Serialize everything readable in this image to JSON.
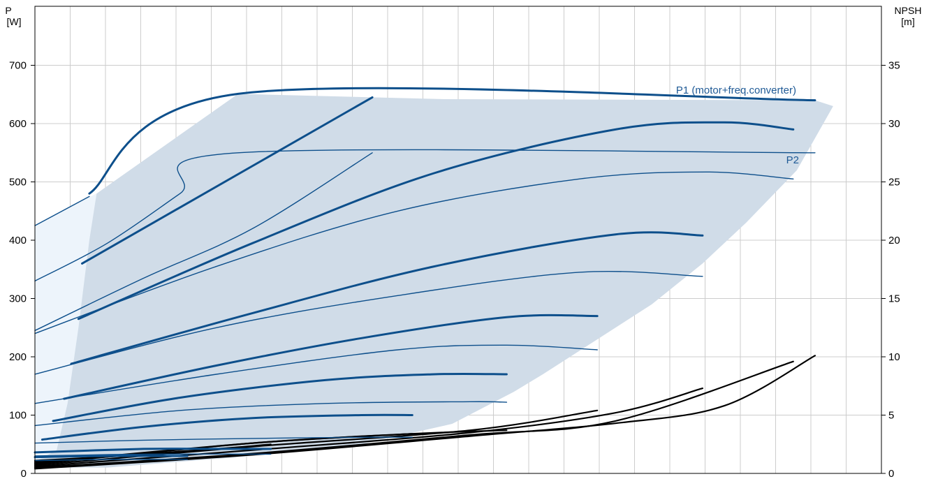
{
  "chart_data": {
    "type": "line",
    "title": "",
    "y_left": {
      "label_line1": "P",
      "label_line2": "[W]",
      "ylim": [
        0,
        700
      ],
      "ticks": [
        0,
        100,
        200,
        300,
        400,
        500,
        600,
        700
      ]
    },
    "y_right": {
      "label_line1": "NPSH",
      "label_line2": "[m]",
      "ylim": [
        0,
        35
      ],
      "ticks": [
        0,
        5,
        10,
        15,
        20,
        25,
        30,
        35
      ]
    },
    "x": {
      "xlim": [
        0,
        24
      ],
      "grid_count": 24,
      "tick_labels": []
    },
    "grid": true,
    "colors": {
      "curve": "#0d4f8b",
      "envelope": "#d0dce8",
      "light_region": "#edf4fb",
      "npsh": "#000000",
      "grid": "#cccccc",
      "label": "#1f5a96",
      "text": "#000000"
    },
    "annotations": [
      {
        "id": "p1",
        "text": "P1 (motor+freq.converter)"
      },
      {
        "id": "p2",
        "text": "P2"
      }
    ],
    "envelope_upper": [
      [
        0,
        425
      ],
      [
        1.7,
        480
      ],
      [
        5.6,
        651
      ],
      [
        11.2,
        642
      ],
      [
        21.5,
        640
      ],
      [
        22,
        630
      ]
    ],
    "envelope_lower": [
      [
        22,
        630
      ],
      [
        21,
        520
      ],
      [
        19.6,
        430
      ],
      [
        18.4,
        360
      ],
      [
        17,
        290
      ],
      [
        15.5,
        230
      ],
      [
        14,
        170
      ],
      [
        13.2,
        140
      ],
      [
        11.5,
        85
      ],
      [
        9,
        50
      ],
      [
        6,
        30
      ],
      [
        2,
        10
      ],
      [
        0,
        10
      ]
    ],
    "light_region": [
      [
        0,
        425
      ],
      [
        1.7,
        480
      ],
      [
        1.5,
        400
      ],
      [
        1.2,
        250
      ],
      [
        0.9,
        120
      ],
      [
        0.6,
        40
      ],
      [
        0,
        20
      ]
    ],
    "p1_series": [
      {
        "name": "P1",
        "values": [
          [
            1.5,
            480
          ],
          [
            5.6,
            651
          ],
          [
            21.5,
            640
          ]
        ]
      },
      {
        "name": "P1",
        "values": [
          [
            1.3,
            360
          ],
          [
            9.3,
            645
          ]
        ]
      },
      {
        "name": "P1",
        "values": [
          [
            1.2,
            265
          ],
          [
            6,
            395
          ],
          [
            11,
            515
          ],
          [
            16,
            590
          ],
          [
            19,
            602
          ],
          [
            20.9,
            590
          ]
        ]
      },
      {
        "name": "P1",
        "values": [
          [
            1,
            188
          ],
          [
            6,
            275
          ],
          [
            11,
            355
          ],
          [
            16,
            410
          ],
          [
            18.4,
            408
          ]
        ]
      },
      {
        "name": "P1",
        "values": [
          [
            0.8,
            128
          ],
          [
            5,
            185
          ],
          [
            9,
            232
          ],
          [
            13,
            268
          ],
          [
            15.5,
            270
          ]
        ]
      },
      {
        "name": "P1",
        "values": [
          [
            0.5,
            90
          ],
          [
            4,
            130
          ],
          [
            8,
            160
          ],
          [
            11,
            170
          ],
          [
            13,
            170
          ]
        ]
      },
      {
        "name": "P1",
        "values": [
          [
            0.2,
            58
          ],
          [
            3,
            80
          ],
          [
            6,
            95
          ],
          [
            9,
            100
          ],
          [
            10.4,
            100
          ]
        ]
      },
      {
        "name": "P1",
        "values": [
          [
            0,
            36
          ],
          [
            3,
            42
          ],
          [
            5,
            42
          ],
          [
            6.5,
            42
          ]
        ]
      },
      {
        "name": "P1",
        "values": [
          [
            0,
            28
          ],
          [
            2,
            30
          ],
          [
            4.2,
            30
          ]
        ]
      }
    ],
    "p2_series": [
      {
        "name": "P2",
        "values": [
          [
            0,
            425
          ],
          [
            1.5,
            475
          ]
        ]
      },
      {
        "name": "P2",
        "values": [
          [
            0,
            330
          ],
          [
            2,
            395
          ],
          [
            4,
            480
          ],
          [
            5.6,
            550
          ],
          [
            21.5,
            550
          ]
        ]
      },
      {
        "name": "P2",
        "values": [
          [
            0,
            245
          ],
          [
            3,
            335
          ],
          [
            6,
            420
          ],
          [
            9.3,
            550
          ]
        ]
      },
      {
        "name": "P2",
        "values": [
          [
            0,
            240
          ],
          [
            5,
            355
          ],
          [
            10,
            450
          ],
          [
            15,
            505
          ],
          [
            18.5,
            517
          ],
          [
            20.9,
            505
          ]
        ]
      },
      {
        "name": "P2",
        "values": [
          [
            0,
            170
          ],
          [
            5,
            250
          ],
          [
            10,
            305
          ],
          [
            15,
            345
          ],
          [
            18.4,
            338
          ]
        ]
      },
      {
        "name": "P2",
        "values": [
          [
            0,
            120
          ],
          [
            5,
            170
          ],
          [
            10,
            212
          ],
          [
            13,
            220
          ],
          [
            15.5,
            212
          ]
        ]
      },
      {
        "name": "P2",
        "values": [
          [
            0,
            82
          ],
          [
            4,
            108
          ],
          [
            8,
            120
          ],
          [
            12,
            123
          ],
          [
            13,
            122
          ]
        ]
      },
      {
        "name": "P2",
        "values": [
          [
            0,
            52
          ],
          [
            3,
            57
          ],
          [
            6,
            60
          ],
          [
            9,
            62
          ],
          [
            10.4,
            62
          ]
        ]
      },
      {
        "name": "P2",
        "values": [
          [
            0,
            30
          ],
          [
            3,
            33
          ],
          [
            6.5,
            33
          ]
        ]
      },
      {
        "name": "P2",
        "values": [
          [
            0,
            22
          ],
          [
            2,
            24
          ],
          [
            4.2,
            24
          ]
        ]
      }
    ],
    "npsh_series": [
      {
        "name": "NPSH",
        "values": [
          [
            0,
            0.4
          ],
          [
            6,
            1.6
          ],
          [
            12,
            3.2
          ],
          [
            16,
            4.3
          ],
          [
            19,
            5.8
          ],
          [
            21.5,
            10.1
          ]
        ]
      },
      {
        "name": "NPSH",
        "values": [
          [
            0,
            0.5
          ],
          [
            6,
            1.7
          ],
          [
            12,
            3.3
          ],
          [
            16,
            4.5
          ],
          [
            20.9,
            9.6
          ]
        ]
      },
      {
        "name": "NPSH",
        "values": [
          [
            0,
            0.6
          ],
          [
            6,
            2
          ],
          [
            12,
            3.5
          ],
          [
            16,
            5.2
          ],
          [
            18.4,
            7.3
          ]
        ]
      },
      {
        "name": "NPSH",
        "values": [
          [
            0,
            0.7
          ],
          [
            6,
            2.3
          ],
          [
            12,
            3.7
          ],
          [
            15.5,
            5.4
          ]
        ]
      },
      {
        "name": "NPSH",
        "values": [
          [
            0,
            0.8
          ],
          [
            6,
            2.6
          ],
          [
            10.4,
            3.4
          ],
          [
            13,
            3.7
          ]
        ]
      },
      {
        "name": "NPSH",
        "values": [
          [
            0,
            0.9
          ],
          [
            6,
            2.6
          ],
          [
            10.4,
            3.4
          ]
        ]
      },
      {
        "name": "NPSH",
        "values": [
          [
            0,
            1
          ],
          [
            5,
            2.1
          ],
          [
            6.5,
            2.5
          ]
        ]
      },
      {
        "name": "NPSH",
        "values": [
          [
            0,
            1.1
          ],
          [
            3,
            1.6
          ],
          [
            4.2,
            1.9
          ]
        ]
      }
    ]
  }
}
